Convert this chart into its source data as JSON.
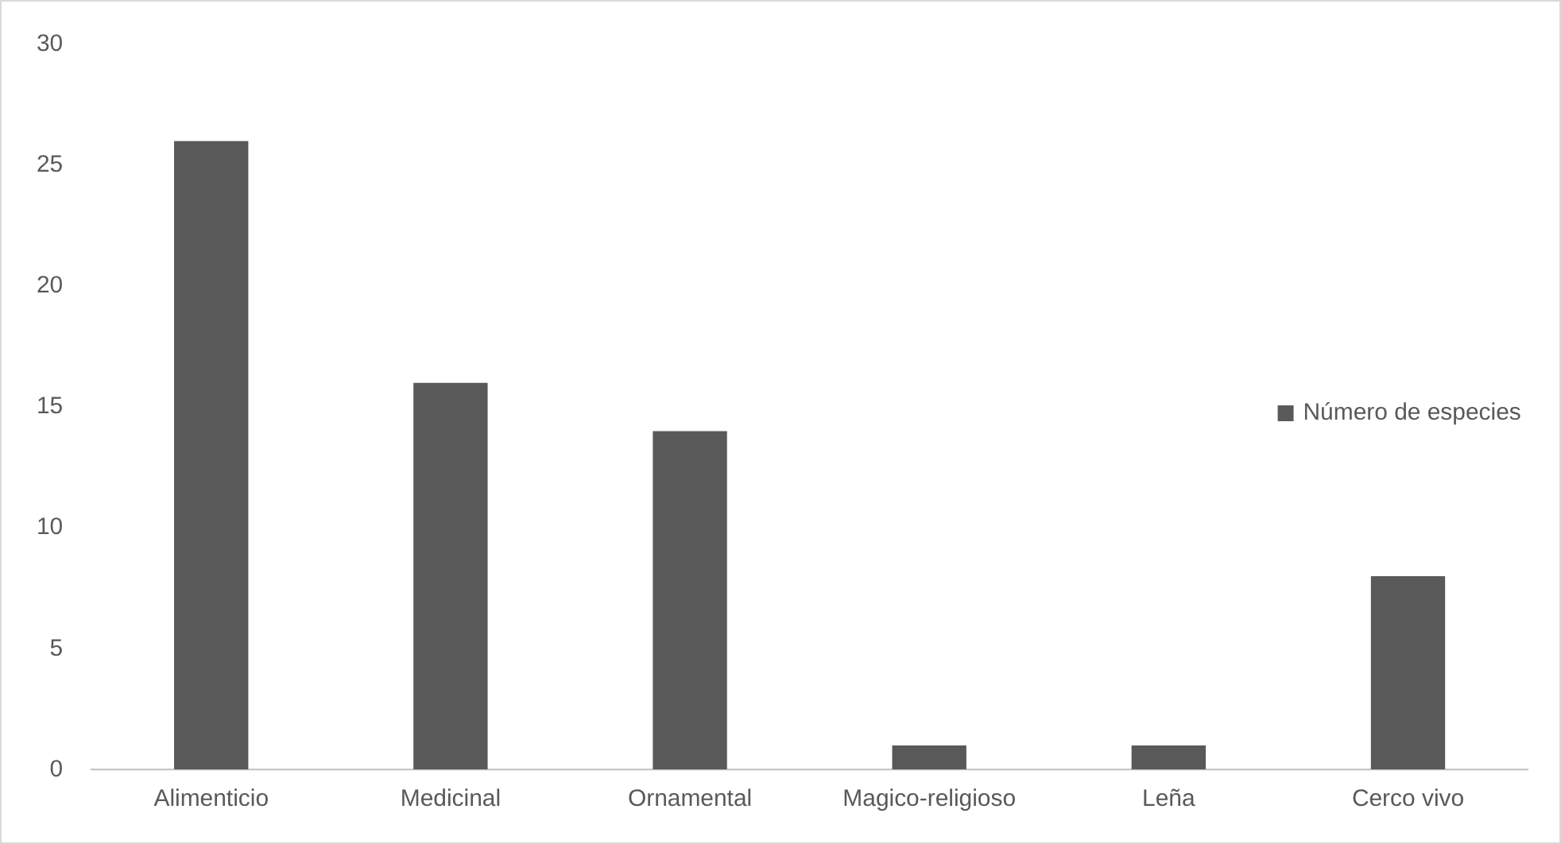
{
  "chart_data": {
    "type": "bar",
    "categories": [
      "Alimenticio",
      "Medicinal",
      "Ornamental",
      "Magico-religioso",
      "Leña",
      "Cerco vivo"
    ],
    "series": [
      {
        "name": "Número de especies",
        "color": "#595959",
        "values": [
          26,
          16,
          14,
          1,
          1,
          8
        ]
      }
    ],
    "ylim": [
      0,
      30
    ],
    "yticks": [
      0,
      5,
      10,
      15,
      20,
      25,
      30
    ],
    "grid": false,
    "legend": "right"
  }
}
